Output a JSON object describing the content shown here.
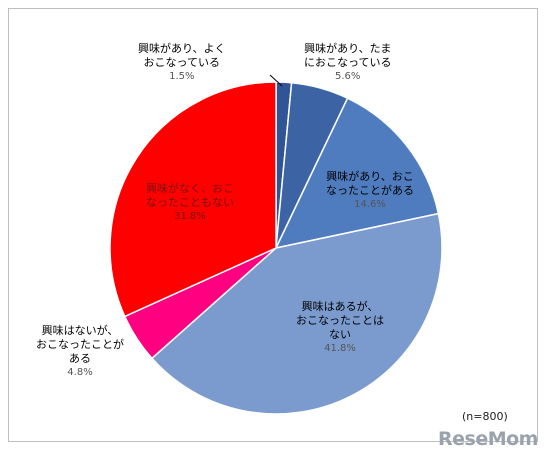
{
  "chart_data": {
    "type": "pie",
    "title": "",
    "slices": [
      {
        "label": "興味があり、よく\nおこなっている",
        "value": 1.5,
        "pct_text": "1.5%",
        "color": "#2f5597"
      },
      {
        "label": "興味があり、たま\nにおこなっている",
        "value": 5.6,
        "pct_text": "5.6%",
        "color": "#3c64a4"
      },
      {
        "label": "興味があり、おこ\nなったことがある",
        "value": 14.6,
        "pct_text": "14.6%",
        "color": "#4f7cbf"
      },
      {
        "label": "興味はあるが、\nおこなったことは\nない",
        "value": 41.8,
        "pct_text": "41.8%",
        "color": "#7b9bce"
      },
      {
        "label": "興味はないが、\nおこなったことが\nある",
        "value": 4.8,
        "pct_text": "4.8%",
        "color": "#ff0080"
      },
      {
        "label": "興味がなく、おこ\nなったこともない",
        "value": 31.8,
        "pct_text": "31.8%",
        "color": "#ff0000"
      }
    ],
    "note": "(n=800)"
  },
  "watermark": "ReseMom"
}
